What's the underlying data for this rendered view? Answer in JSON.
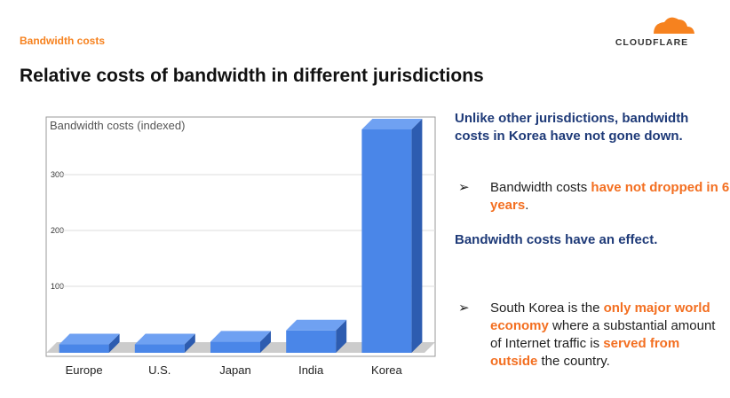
{
  "header": {
    "section": "Bandwidth costs",
    "logo": "CLOUDFLARE"
  },
  "title": "Relative costs of bandwidth in different jurisdictions",
  "chart_data": {
    "type": "bar3d",
    "ylabel": "Bandwidth costs (indexed)",
    "categories": [
      "Europe",
      "U.S.",
      "Japan",
      "India",
      "Korea"
    ],
    "values": [
      15,
      15,
      20,
      40,
      400
    ],
    "color": "#4a86e8",
    "ylim": [
      0,
      400
    ],
    "yticks": [
      100,
      200,
      300
    ],
    "grid": true
  },
  "notes": [
    {
      "parts": [
        "Unlike other jurisdictions, bandwidth costs in Korea have not gone down."
      ]
    },
    {
      "parts": [
        "Bandwidth costs ",
        "have not dropped in 6 years",
        "."
      ]
    },
    {
      "parts": [
        "Bandwidth costs have an effect."
      ]
    },
    {
      "parts": [
        "South Korea is the ",
        "only major world economy",
        " where a substantial amount of Internet traffic is ",
        "served from outside",
        " the country."
      ]
    }
  ]
}
